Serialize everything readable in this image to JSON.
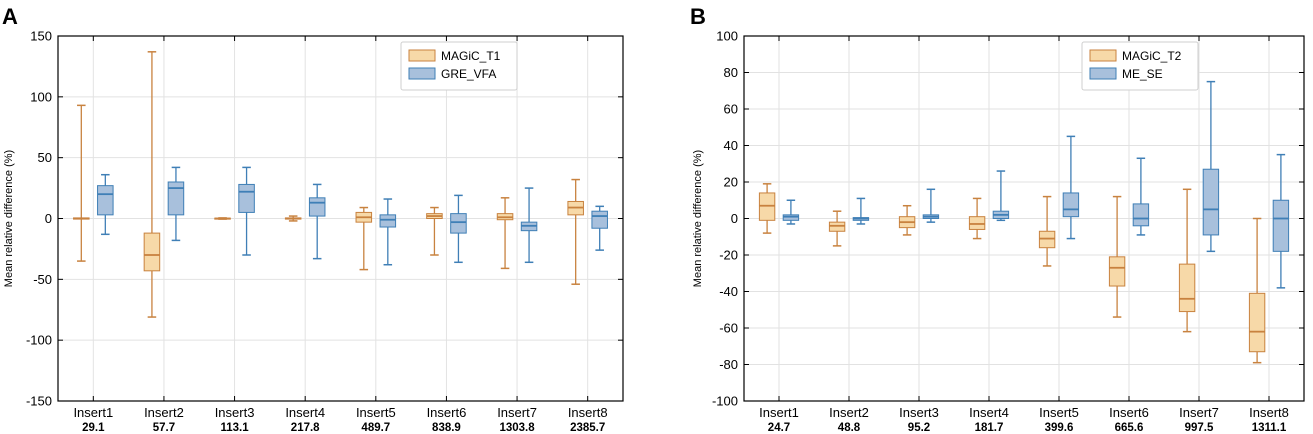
{
  "colors": {
    "orange_fill": "#f7d9a8",
    "orange_edge": "#c8823f",
    "blue_fill": "#a8c0dc",
    "blue_edge": "#3f7fb6",
    "grid": "#e2e2e2"
  },
  "chart_data": [
    {
      "type": "boxplot",
      "panel_label": "A",
      "ylabel": "Mean relative difference (%)",
      "ylim": [
        -150,
        150
      ],
      "yticks": [
        -150,
        -100,
        -50,
        0,
        50,
        100,
        150
      ],
      "categories": [
        "Insert1",
        "Insert2",
        "Insert3",
        "Insert4",
        "Insert5",
        "Insert6",
        "Insert7",
        "Insert8"
      ],
      "sublabels": [
        "29.1",
        "57.7",
        "113.1",
        "217.8",
        "489.7",
        "838.9",
        "1303.8",
        "2385.7"
      ],
      "legend_position": "top-right",
      "series": [
        {
          "name": "MAGiC_T1",
          "color": "orange",
          "boxes": [
            {
              "min": -35,
              "q1": -0.5,
              "median": 0,
              "q3": 0.5,
              "max": 93
            },
            {
              "min": -81,
              "q1": -43,
              "median": -30,
              "q3": -12,
              "max": 137
            },
            {
              "min": -0.5,
              "q1": -0.3,
              "median": 0,
              "q3": 0.3,
              "max": 0.5
            },
            {
              "min": -2,
              "q1": -0.5,
              "median": 0,
              "q3": 0.5,
              "max": 2
            },
            {
              "min": -42,
              "q1": -3,
              "median": 1,
              "q3": 5,
              "max": 9
            },
            {
              "min": -30,
              "q1": 0,
              "median": 2,
              "q3": 4,
              "max": 9
            },
            {
              "min": -41,
              "q1": -1,
              "median": 1,
              "q3": 4,
              "max": 17
            },
            {
              "min": -54,
              "q1": 3,
              "median": 9,
              "q3": 14,
              "max": 32
            }
          ]
        },
        {
          "name": "GRE_VFA",
          "color": "blue",
          "boxes": [
            {
              "min": -13,
              "q1": 3,
              "median": 20,
              "q3": 27,
              "max": 36
            },
            {
              "min": -18,
              "q1": 3,
              "median": 25,
              "q3": 30,
              "max": 42
            },
            {
              "min": -30,
              "q1": 5,
              "median": 22,
              "q3": 28,
              "max": 42
            },
            {
              "min": -33,
              "q1": 2,
              "median": 13,
              "q3": 17,
              "max": 28
            },
            {
              "min": -38,
              "q1": -7,
              "median": -1,
              "q3": 3,
              "max": 16
            },
            {
              "min": -36,
              "q1": -12,
              "median": -3,
              "q3": 4,
              "max": 19
            },
            {
              "min": -36,
              "q1": -10,
              "median": -6,
              "q3": -3,
              "max": 25
            },
            {
              "min": -26,
              "q1": -8,
              "median": 2,
              "q3": 6,
              "max": 10
            }
          ]
        }
      ]
    },
    {
      "type": "boxplot",
      "panel_label": "B",
      "ylabel": "Mean relative difference (%)",
      "ylim": [
        -100,
        100
      ],
      "yticks": [
        -100,
        -80,
        -60,
        -40,
        -20,
        0,
        20,
        40,
        60,
        80,
        100
      ],
      "categories": [
        "Insert1",
        "Insert2",
        "Insert3",
        "Insert4",
        "Insert5",
        "Insert6",
        "Insert7",
        "Insert8"
      ],
      "sublabels": [
        "24.7",
        "48.8",
        "95.2",
        "181.7",
        "399.6",
        "665.6",
        "997.5",
        "1311.1"
      ],
      "legend_position": "top-right",
      "series": [
        {
          "name": "MAGiC_T2",
          "color": "orange",
          "boxes": [
            {
              "min": -8,
              "q1": -1,
              "median": 7,
              "q3": 14,
              "max": 19
            },
            {
              "min": -15,
              "q1": -7,
              "median": -4,
              "q3": -2,
              "max": 4
            },
            {
              "min": -9,
              "q1": -5,
              "median": -2,
              "q3": 1,
              "max": 7
            },
            {
              "min": -11,
              "q1": -6,
              "median": -3,
              "q3": 1,
              "max": 11
            },
            {
              "min": -26,
              "q1": -16,
              "median": -11,
              "q3": -7,
              "max": 12
            },
            {
              "min": -54,
              "q1": -37,
              "median": -27,
              "q3": -21,
              "max": 12
            },
            {
              "min": -62,
              "q1": -51,
              "median": -44,
              "q3": -25,
              "max": 16
            },
            {
              "min": -79,
              "q1": -73,
              "median": -62,
              "q3": -41,
              "max": 0
            }
          ]
        },
        {
          "name": "ME_SE",
          "color": "blue",
          "boxes": [
            {
              "min": -3,
              "q1": -1,
              "median": 1,
              "q3": 2,
              "max": 10
            },
            {
              "min": -3,
              "q1": -1,
              "median": 0,
              "q3": 0.5,
              "max": 11
            },
            {
              "min": -2,
              "q1": 0,
              "median": 1,
              "q3": 2,
              "max": 16
            },
            {
              "min": -1,
              "q1": 0,
              "median": 2,
              "q3": 4,
              "max": 26
            },
            {
              "min": -11,
              "q1": 1,
              "median": 5,
              "q3": 14,
              "max": 45
            },
            {
              "min": -9,
              "q1": -4,
              "median": 0,
              "q3": 8,
              "max": 33
            },
            {
              "min": -18,
              "q1": -9,
              "median": 5,
              "q3": 27,
              "max": 75
            },
            {
              "min": -38,
              "q1": -18,
              "median": 0,
              "q3": 10,
              "max": 35
            }
          ]
        }
      ]
    }
  ]
}
